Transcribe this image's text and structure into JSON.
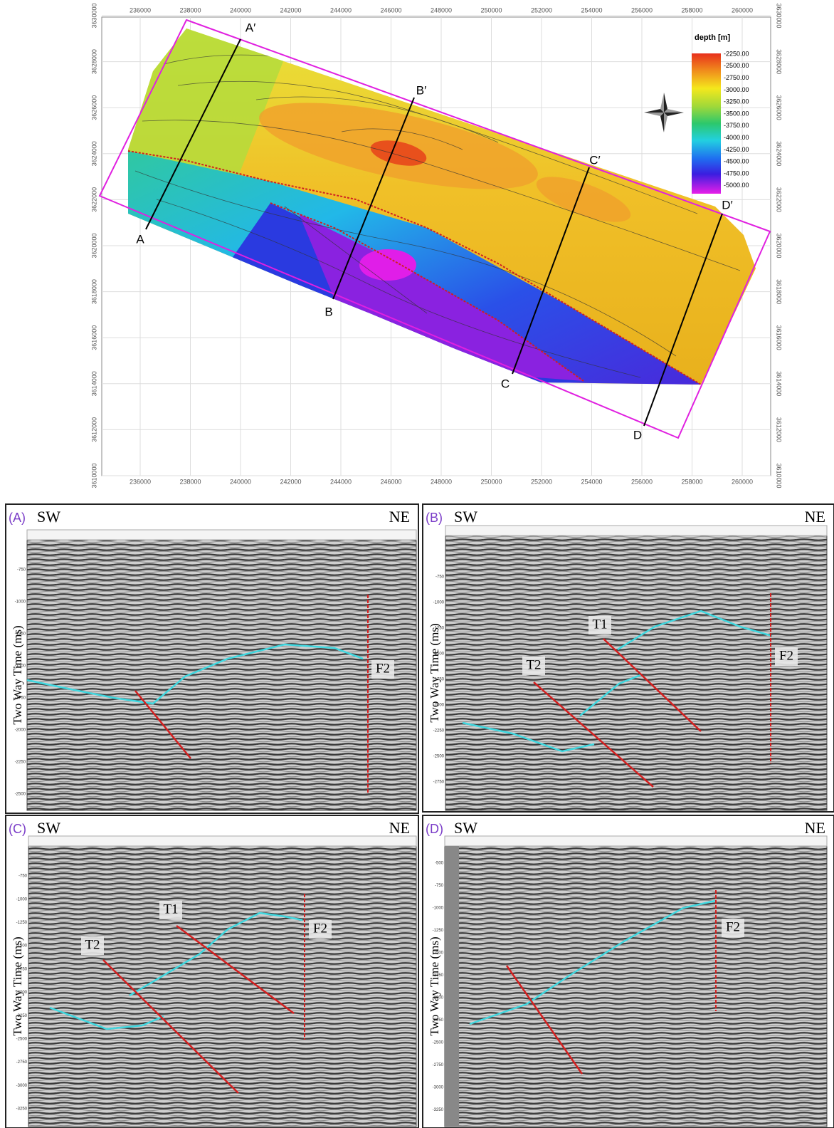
{
  "map": {
    "x_ticks": [
      236000,
      238000,
      240000,
      242000,
      244000,
      246000,
      248000,
      250000,
      252000,
      254000,
      256000,
      258000,
      260000
    ],
    "y_ticks": [
      3610000,
      3612000,
      3614000,
      3616000,
      3618000,
      3620000,
      3622000,
      3624000,
      3626000,
      3628000,
      3630000
    ],
    "legend": {
      "title": "depth [m]",
      "labels": [
        "-2250.00",
        "-2500.00",
        "-2750.00",
        "-3000.00",
        "-3250.00",
        "-3500.00",
        "-3750.00",
        "-4000.00",
        "-4250.00",
        "-4500.00",
        "-4750.00",
        "-5000.00"
      ]
    },
    "profiles": [
      {
        "start": "A",
        "end": "A′"
      },
      {
        "start": "B",
        "end": "B′"
      },
      {
        "start": "C",
        "end": "C′"
      },
      {
        "start": "D",
        "end": "D′"
      }
    ]
  },
  "panels": [
    {
      "label": "(A)",
      "left": "SW",
      "right": "NE",
      "y_axis_title": "Two Way Time (ms)",
      "y_ticks": [
        -750,
        -1000,
        -1250,
        -1500,
        -1750,
        -2000,
        -2250,
        -2500
      ],
      "faults": [
        "F2"
      ]
    },
    {
      "label": "(B)",
      "left": "SW",
      "right": "NE",
      "y_axis_title": "Two Way Time (ms)",
      "y_ticks": [
        -750,
        -1000,
        -1250,
        -1500,
        -1750,
        -2000,
        -2250,
        -2500,
        -2750
      ],
      "faults": [
        "T1",
        "T2",
        "F2"
      ]
    },
    {
      "label": "(C)",
      "left": "SW",
      "right": "NE",
      "y_axis_title": "Two Way Time (ms)",
      "y_ticks": [
        -750,
        -1000,
        -1250,
        -1500,
        -1750,
        -2000,
        -2250,
        -2500,
        -2750,
        -3000,
        -3250
      ],
      "faults": [
        "T1",
        "T2",
        "F2"
      ]
    },
    {
      "label": "(D)",
      "left": "SW",
      "right": "NE",
      "y_axis_title": "Two Way Time (ms)",
      "y_ticks": [
        -500,
        -750,
        -1000,
        -1250,
        -1500,
        -1750,
        -2000,
        -2250,
        -2500,
        -2750,
        -3000,
        -3250
      ],
      "faults": [
        "F2"
      ]
    }
  ]
}
